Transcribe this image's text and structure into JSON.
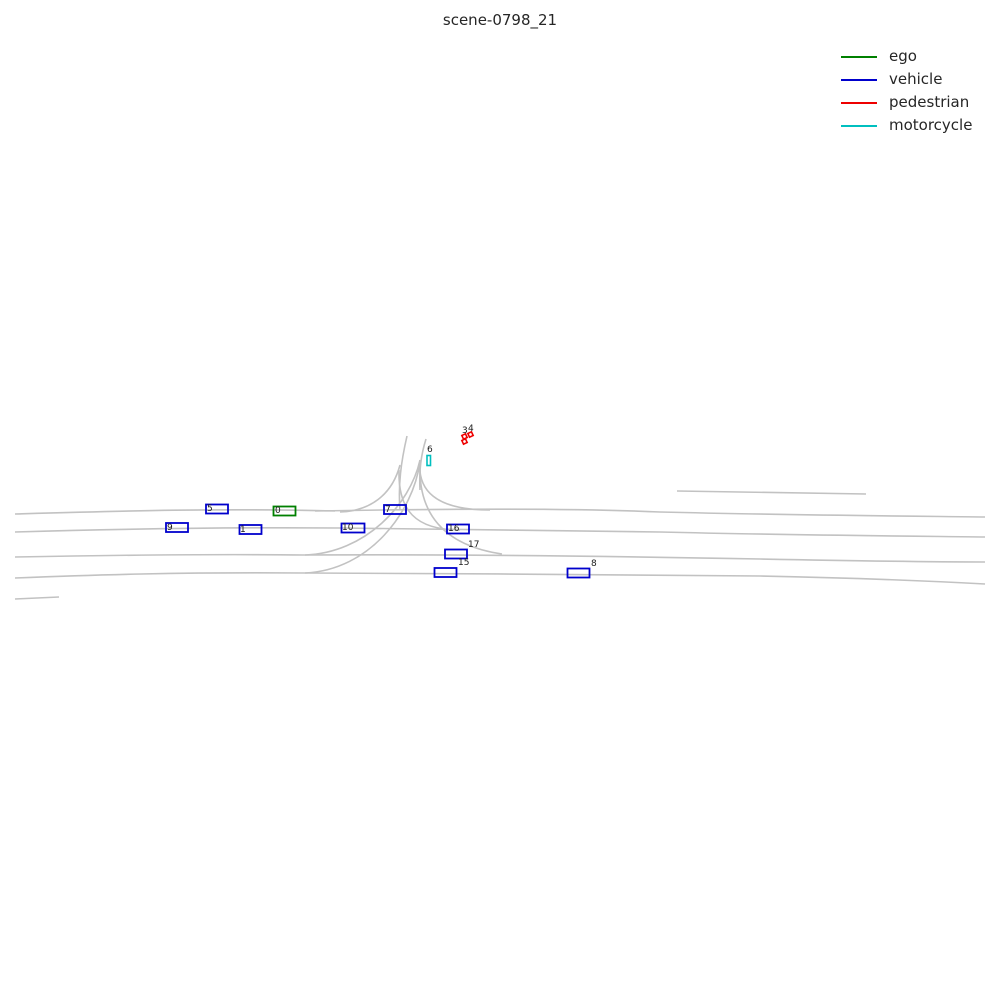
{
  "title": "scene-0798_21",
  "legend": [
    {
      "label": "ego",
      "color": "#008000"
    },
    {
      "label": "vehicle",
      "color": "#0000cc"
    },
    {
      "label": "pedestrian",
      "color": "#ee0000"
    },
    {
      "label": "motorcycle",
      "color": "#00bfbf"
    }
  ],
  "agents": [
    {
      "id": "0",
      "type": "ego"
    },
    {
      "id": "1",
      "type": "vehicle"
    },
    {
      "id": "3",
      "type": "pedestrian"
    },
    {
      "id": "4",
      "type": "pedestrian"
    },
    {
      "id": "5",
      "type": "vehicle"
    },
    {
      "id": "6",
      "type": "motorcycle"
    },
    {
      "id": "7",
      "type": "vehicle"
    },
    {
      "id": "8",
      "type": "vehicle"
    },
    {
      "id": "9",
      "type": "vehicle"
    },
    {
      "id": "10",
      "type": "vehicle"
    },
    {
      "id": "15",
      "type": "vehicle"
    },
    {
      "id": "16",
      "type": "vehicle"
    },
    {
      "id": "17",
      "type": "vehicle"
    }
  ]
}
